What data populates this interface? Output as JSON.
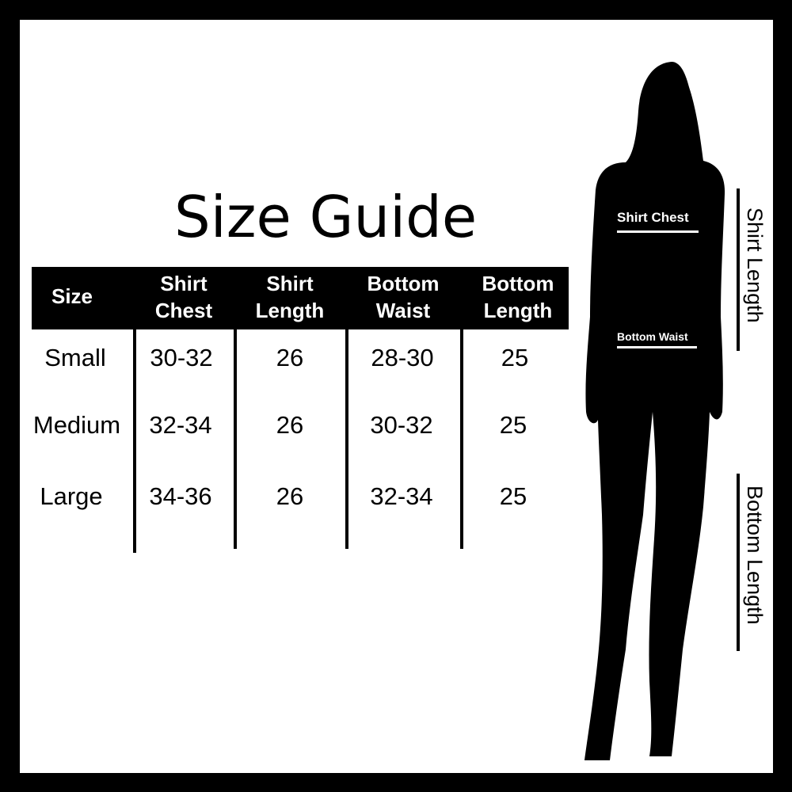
{
  "title": "Size Guide",
  "table": {
    "headers": [
      [
        "Size"
      ],
      [
        "Shirt",
        "Chest"
      ],
      [
        "Shirt",
        "Length"
      ],
      [
        "Bottom",
        "Waist"
      ],
      [
        "Bottom",
        "Length"
      ]
    ],
    "rows": [
      [
        "Small",
        "30-32",
        "26",
        "28-30",
        "25"
      ],
      [
        "Medium",
        "32-34",
        "26",
        "30-32",
        "25"
      ],
      [
        "Large",
        "34-36",
        "26",
        "32-34",
        "25"
      ]
    ]
  },
  "figure": {
    "shirt_chest_label": "Shirt Chest",
    "bottom_waist_label": "Bottom Waist",
    "shirt_length_label": "Shirt Length",
    "bottom_length_label": "Bottom Length"
  }
}
